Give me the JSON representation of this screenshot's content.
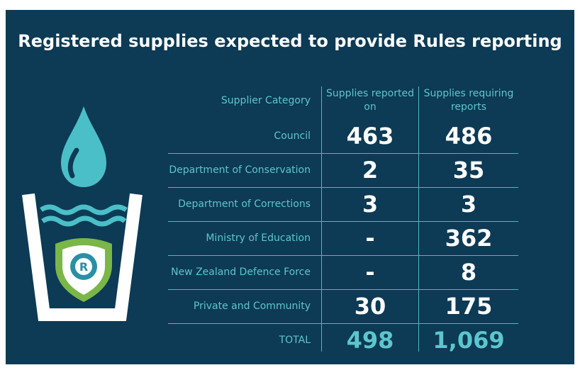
{
  "title": "Registered supplies expected to provide Rules reporting",
  "table": {
    "header": [
      "Supplier Category",
      "Supplies reported on",
      "Supplies requiring reports"
    ],
    "rows": [
      [
        "Council",
        463,
        486
      ],
      [
        "Department of Conservation",
        2,
        35
      ],
      [
        "Department of Corrections",
        3,
        3
      ],
      [
        "Ministry of Education",
        "-",
        362
      ],
      [
        "New Zealand Defence Force",
        "-",
        8
      ],
      [
        "Private and Community",
        30,
        175
      ]
    ],
    "total": [
      "TOTAL",
      498,
      "1,069"
    ]
  }
}
